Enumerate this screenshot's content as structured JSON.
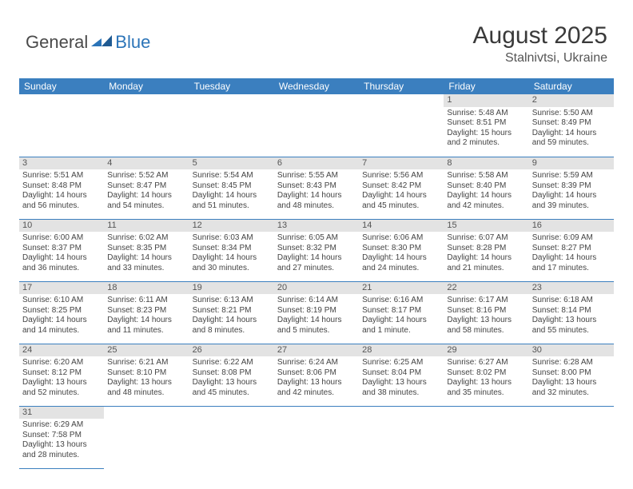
{
  "logo": {
    "text1": "General",
    "text2": "Blue"
  },
  "title": "August 2025",
  "location": "Stalnivtsi, Ukraine",
  "header_bg": "#3b7fbf",
  "daynames": [
    "Sunday",
    "Monday",
    "Tuesday",
    "Wednesday",
    "Thursday",
    "Friday",
    "Saturday"
  ],
  "weeks": [
    [
      null,
      null,
      null,
      null,
      null,
      {
        "n": "1",
        "sr": "Sunrise: 5:48 AM",
        "ss": "Sunset: 8:51 PM",
        "dl1": "Daylight: 15 hours",
        "dl2": "and 2 minutes."
      },
      {
        "n": "2",
        "sr": "Sunrise: 5:50 AM",
        "ss": "Sunset: 8:49 PM",
        "dl1": "Daylight: 14 hours",
        "dl2": "and 59 minutes."
      }
    ],
    [
      {
        "n": "3",
        "sr": "Sunrise: 5:51 AM",
        "ss": "Sunset: 8:48 PM",
        "dl1": "Daylight: 14 hours",
        "dl2": "and 56 minutes."
      },
      {
        "n": "4",
        "sr": "Sunrise: 5:52 AM",
        "ss": "Sunset: 8:47 PM",
        "dl1": "Daylight: 14 hours",
        "dl2": "and 54 minutes."
      },
      {
        "n": "5",
        "sr": "Sunrise: 5:54 AM",
        "ss": "Sunset: 8:45 PM",
        "dl1": "Daylight: 14 hours",
        "dl2": "and 51 minutes."
      },
      {
        "n": "6",
        "sr": "Sunrise: 5:55 AM",
        "ss": "Sunset: 8:43 PM",
        "dl1": "Daylight: 14 hours",
        "dl2": "and 48 minutes."
      },
      {
        "n": "7",
        "sr": "Sunrise: 5:56 AM",
        "ss": "Sunset: 8:42 PM",
        "dl1": "Daylight: 14 hours",
        "dl2": "and 45 minutes."
      },
      {
        "n": "8",
        "sr": "Sunrise: 5:58 AM",
        "ss": "Sunset: 8:40 PM",
        "dl1": "Daylight: 14 hours",
        "dl2": "and 42 minutes."
      },
      {
        "n": "9",
        "sr": "Sunrise: 5:59 AM",
        "ss": "Sunset: 8:39 PM",
        "dl1": "Daylight: 14 hours",
        "dl2": "and 39 minutes."
      }
    ],
    [
      {
        "n": "10",
        "sr": "Sunrise: 6:00 AM",
        "ss": "Sunset: 8:37 PM",
        "dl1": "Daylight: 14 hours",
        "dl2": "and 36 minutes."
      },
      {
        "n": "11",
        "sr": "Sunrise: 6:02 AM",
        "ss": "Sunset: 8:35 PM",
        "dl1": "Daylight: 14 hours",
        "dl2": "and 33 minutes."
      },
      {
        "n": "12",
        "sr": "Sunrise: 6:03 AM",
        "ss": "Sunset: 8:34 PM",
        "dl1": "Daylight: 14 hours",
        "dl2": "and 30 minutes."
      },
      {
        "n": "13",
        "sr": "Sunrise: 6:05 AM",
        "ss": "Sunset: 8:32 PM",
        "dl1": "Daylight: 14 hours",
        "dl2": "and 27 minutes."
      },
      {
        "n": "14",
        "sr": "Sunrise: 6:06 AM",
        "ss": "Sunset: 8:30 PM",
        "dl1": "Daylight: 14 hours",
        "dl2": "and 24 minutes."
      },
      {
        "n": "15",
        "sr": "Sunrise: 6:07 AM",
        "ss": "Sunset: 8:28 PM",
        "dl1": "Daylight: 14 hours",
        "dl2": "and 21 minutes."
      },
      {
        "n": "16",
        "sr": "Sunrise: 6:09 AM",
        "ss": "Sunset: 8:27 PM",
        "dl1": "Daylight: 14 hours",
        "dl2": "and 17 minutes."
      }
    ],
    [
      {
        "n": "17",
        "sr": "Sunrise: 6:10 AM",
        "ss": "Sunset: 8:25 PM",
        "dl1": "Daylight: 14 hours",
        "dl2": "and 14 minutes."
      },
      {
        "n": "18",
        "sr": "Sunrise: 6:11 AM",
        "ss": "Sunset: 8:23 PM",
        "dl1": "Daylight: 14 hours",
        "dl2": "and 11 minutes."
      },
      {
        "n": "19",
        "sr": "Sunrise: 6:13 AM",
        "ss": "Sunset: 8:21 PM",
        "dl1": "Daylight: 14 hours",
        "dl2": "and 8 minutes."
      },
      {
        "n": "20",
        "sr": "Sunrise: 6:14 AM",
        "ss": "Sunset: 8:19 PM",
        "dl1": "Daylight: 14 hours",
        "dl2": "and 5 minutes."
      },
      {
        "n": "21",
        "sr": "Sunrise: 6:16 AM",
        "ss": "Sunset: 8:17 PM",
        "dl1": "Daylight: 14 hours",
        "dl2": "and 1 minute."
      },
      {
        "n": "22",
        "sr": "Sunrise: 6:17 AM",
        "ss": "Sunset: 8:16 PM",
        "dl1": "Daylight: 13 hours",
        "dl2": "and 58 minutes."
      },
      {
        "n": "23",
        "sr": "Sunrise: 6:18 AM",
        "ss": "Sunset: 8:14 PM",
        "dl1": "Daylight: 13 hours",
        "dl2": "and 55 minutes."
      }
    ],
    [
      {
        "n": "24",
        "sr": "Sunrise: 6:20 AM",
        "ss": "Sunset: 8:12 PM",
        "dl1": "Daylight: 13 hours",
        "dl2": "and 52 minutes."
      },
      {
        "n": "25",
        "sr": "Sunrise: 6:21 AM",
        "ss": "Sunset: 8:10 PM",
        "dl1": "Daylight: 13 hours",
        "dl2": "and 48 minutes."
      },
      {
        "n": "26",
        "sr": "Sunrise: 6:22 AM",
        "ss": "Sunset: 8:08 PM",
        "dl1": "Daylight: 13 hours",
        "dl2": "and 45 minutes."
      },
      {
        "n": "27",
        "sr": "Sunrise: 6:24 AM",
        "ss": "Sunset: 8:06 PM",
        "dl1": "Daylight: 13 hours",
        "dl2": "and 42 minutes."
      },
      {
        "n": "28",
        "sr": "Sunrise: 6:25 AM",
        "ss": "Sunset: 8:04 PM",
        "dl1": "Daylight: 13 hours",
        "dl2": "and 38 minutes."
      },
      {
        "n": "29",
        "sr": "Sunrise: 6:27 AM",
        "ss": "Sunset: 8:02 PM",
        "dl1": "Daylight: 13 hours",
        "dl2": "and 35 minutes."
      },
      {
        "n": "30",
        "sr": "Sunrise: 6:28 AM",
        "ss": "Sunset: 8:00 PM",
        "dl1": "Daylight: 13 hours",
        "dl2": "and 32 minutes."
      }
    ],
    [
      {
        "n": "31",
        "sr": "Sunrise: 6:29 AM",
        "ss": "Sunset: 7:58 PM",
        "dl1": "Daylight: 13 hours",
        "dl2": "and 28 minutes."
      },
      null,
      null,
      null,
      null,
      null,
      null
    ]
  ]
}
